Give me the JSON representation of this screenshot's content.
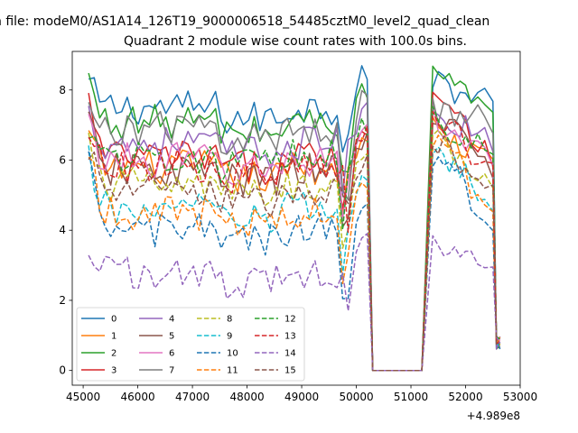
{
  "chart_data": {
    "type": "line",
    "suptitle": "n file: modeM0/AS1A14_126T19_9000006518_54485cztM0_level2_quad_clean",
    "title": "Quadrant 2 module wise count rates with 100.0s bins.",
    "xlabel": "",
    "ylabel": "",
    "x_offset_label": "+4.989e8",
    "xlim": [
      44800,
      53000
    ],
    "ylim": [
      -0.42,
      9.1
    ],
    "xticks": [
      45000,
      46000,
      47000,
      48000,
      49000,
      50000,
      51000,
      52000,
      53000
    ],
    "xtick_labels": [
      "45000",
      "46000",
      "47000",
      "48000",
      "49000",
      "50000",
      "51000",
      "52000",
      "53000"
    ],
    "yticks": [
      0,
      2,
      4,
      6,
      8
    ],
    "ytick_labels": [
      "0",
      "2",
      "4",
      "6",
      "8"
    ],
    "grid": false,
    "legend_position": "lower-left",
    "legend_columns": 4,
    "segments": [
      {
        "start": 45100,
        "end": 49850,
        "n": 48
      },
      {
        "start": 50000,
        "end": 50200,
        "n": 3
      },
      {
        "start": 50300,
        "end": 51200,
        "n": 10
      },
      {
        "start": 51400,
        "end": 52000,
        "n": 7
      },
      {
        "start": 52100,
        "end": 52350,
        "n": 3
      },
      {
        "start": 52500,
        "end": 52630,
        "n": 3
      }
    ],
    "series": [
      {
        "name": "0",
        "color": "#1f77b4",
        "style": "solid",
        "level": 7.5,
        "edge": 8.2
      },
      {
        "name": "1",
        "color": "#ff7f0e",
        "style": "solid",
        "level": 5.8,
        "edge": 6.7
      },
      {
        "name": "2",
        "color": "#2ca02c",
        "style": "solid",
        "level": 7.1,
        "edge": 8.3
      },
      {
        "name": "3",
        "color": "#d62728",
        "style": "solid",
        "level": 6.1,
        "edge": 7.7
      },
      {
        "name": "4",
        "color": "#9467bd",
        "style": "solid",
        "level": 6.5,
        "edge": 7.3
      },
      {
        "name": "5",
        "color": "#8c564b",
        "style": "solid",
        "level": 5.7,
        "edge": 7.1
      },
      {
        "name": "6",
        "color": "#e377c2",
        "style": "solid",
        "level": 6.0,
        "edge": 7.0
      },
      {
        "name": "7",
        "color": "#7f7f7f",
        "style": "solid",
        "level": 6.9,
        "edge": 7.3
      },
      {
        "name": "8",
        "color": "#bcbd22",
        "style": "dashed",
        "level": 5.3,
        "edge": 6.4
      },
      {
        "name": "9",
        "color": "#17becf",
        "style": "dashed",
        "level": 4.6,
        "edge": 6.0
      },
      {
        "name": "10",
        "color": "#1f77b4",
        "style": "dashed",
        "level": 4.0,
        "edge": 5.8
      },
      {
        "name": "11",
        "color": "#ff7f0e",
        "style": "dashed",
        "level": 4.5,
        "edge": 6.5
      },
      {
        "name": "12",
        "color": "#2ca02c",
        "style": "dashed",
        "level": 6.1,
        "edge": 7.0
      },
      {
        "name": "13",
        "color": "#d62728",
        "style": "dashed",
        "level": 5.8,
        "edge": 7.0
      },
      {
        "name": "14",
        "color": "#9467bd",
        "style": "dashed",
        "level": 2.8,
        "edge": 3.6
      },
      {
        "name": "15",
        "color": "#8c564b",
        "style": "dashed",
        "level": 5.1,
        "edge": 6.3
      }
    ]
  }
}
